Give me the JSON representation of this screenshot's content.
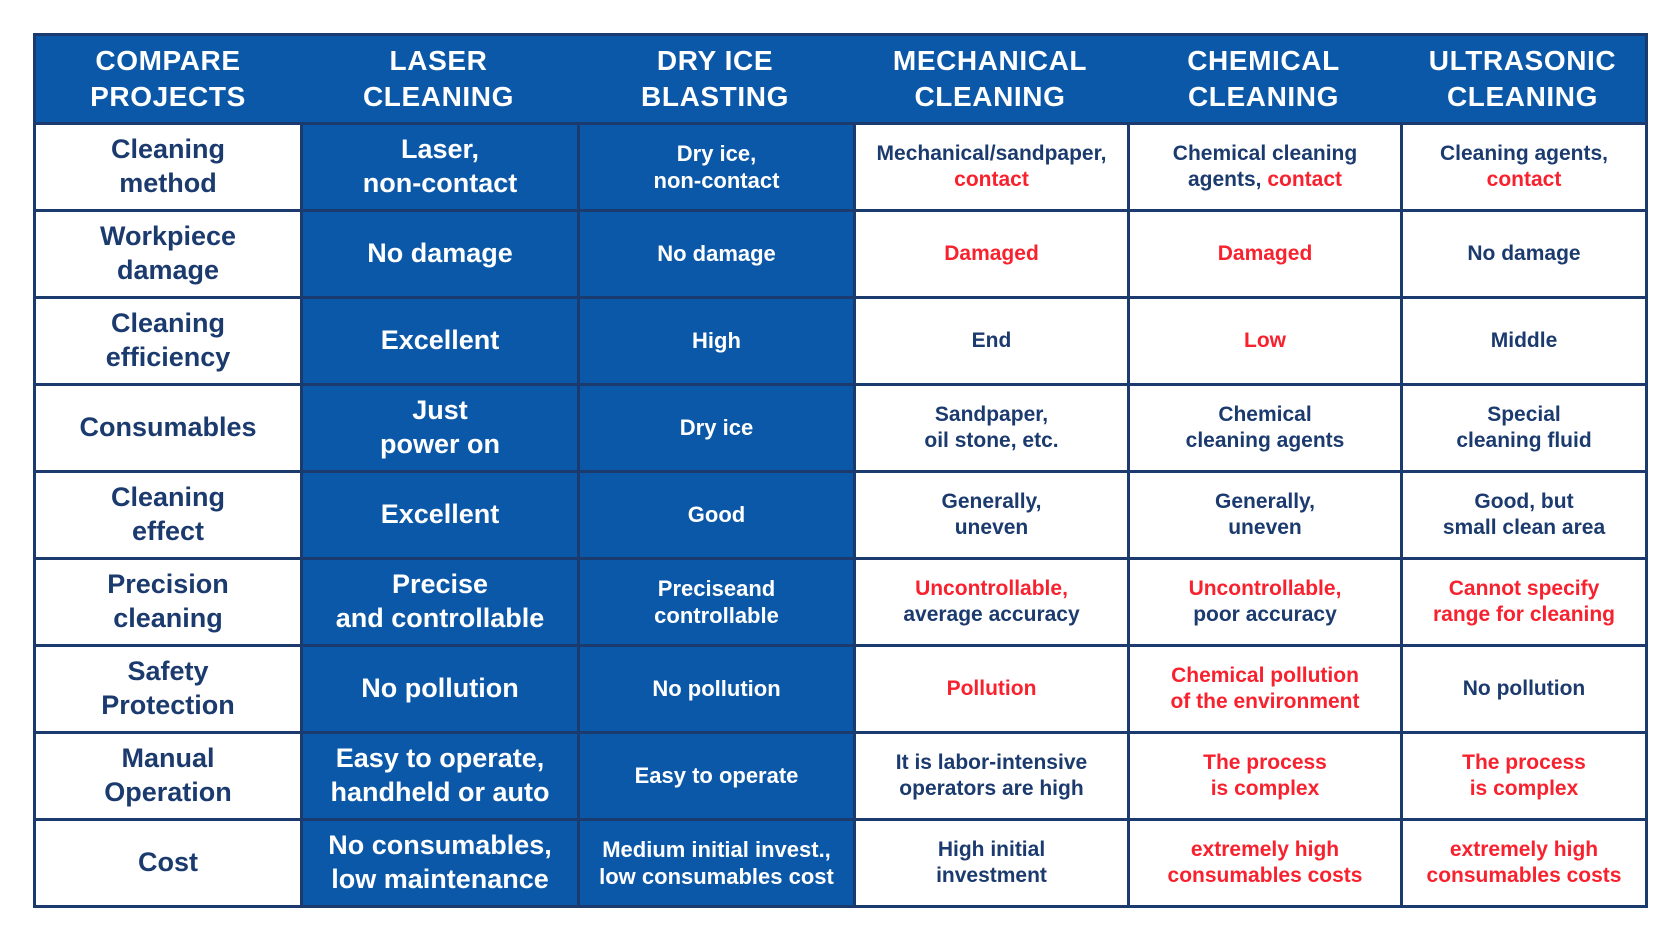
{
  "palette": {
    "header_blue": "#0c58a8",
    "border_navy": "#1b3a6e",
    "text_navy": "#1b3a6e",
    "text_red": "#f8222f",
    "text_white": "#ffffff"
  },
  "table": {
    "columns": [
      {
        "id": "compare-projects",
        "lines": [
          "COMPARE",
          "PROJECTS"
        ],
        "highlight": false,
        "size": "lg"
      },
      {
        "id": "laser-cleaning",
        "lines": [
          "LASER",
          "CLEANING"
        ],
        "highlight": true,
        "size": "lg"
      },
      {
        "id": "dry-ice-blasting",
        "lines": [
          "DRY ICE",
          "BLASTING"
        ],
        "highlight": true,
        "size": "md"
      },
      {
        "id": "mechanical-cleaning",
        "lines": [
          "MECHANICAL",
          "CLEANING"
        ],
        "highlight": false,
        "size": "sm"
      },
      {
        "id": "chemical-cleaning",
        "lines": [
          "CHEMICAL",
          "CLEANING"
        ],
        "highlight": false,
        "size": "sm"
      },
      {
        "id": "ultrasonic-cleaning",
        "lines": [
          "ULTRASONIC",
          "CLEANING"
        ],
        "highlight": false,
        "size": "sm"
      }
    ],
    "rows": [
      {
        "id": "cleaning-method",
        "label_lines": [
          "Cleaning",
          "method"
        ],
        "cells": [
          {
            "lines": [
              [
                {
                  "t": "Laser,",
                  "c": "w"
                }
              ],
              [
                {
                  "t": "non-contact",
                  "c": "w"
                }
              ]
            ]
          },
          {
            "lines": [
              [
                {
                  "t": "Dry ice,",
                  "c": "w"
                }
              ],
              [
                {
                  "t": "non-contact",
                  "c": "w"
                }
              ]
            ]
          },
          {
            "lines": [
              [
                {
                  "t": "Mechanical/sandpaper,",
                  "c": "n"
                }
              ],
              [
                {
                  "t": "contact",
                  "c": "r"
                }
              ]
            ]
          },
          {
            "lines": [
              [
                {
                  "t": "Chemical cleaning",
                  "c": "n"
                }
              ],
              [
                {
                  "t": "agents, ",
                  "c": "n"
                },
                {
                  "t": "contact",
                  "c": "r"
                }
              ]
            ]
          },
          {
            "lines": [
              [
                {
                  "t": "Cleaning agents,",
                  "c": "n"
                }
              ],
              [
                {
                  "t": "contact",
                  "c": "r"
                }
              ]
            ]
          }
        ]
      },
      {
        "id": "workpiece-damage",
        "label_lines": [
          "Workpiece",
          "damage"
        ],
        "cells": [
          {
            "lines": [
              [
                {
                  "t": "No damage",
                  "c": "w"
                }
              ]
            ]
          },
          {
            "lines": [
              [
                {
                  "t": "No damage",
                  "c": "w"
                }
              ]
            ]
          },
          {
            "lines": [
              [
                {
                  "t": "Damaged",
                  "c": "r"
                }
              ]
            ]
          },
          {
            "lines": [
              [
                {
                  "t": "Damaged",
                  "c": "r"
                }
              ]
            ]
          },
          {
            "lines": [
              [
                {
                  "t": "No damage",
                  "c": "n"
                }
              ]
            ]
          }
        ]
      },
      {
        "id": "cleaning-efficiency",
        "label_lines": [
          "Cleaning",
          "efficiency"
        ],
        "cells": [
          {
            "lines": [
              [
                {
                  "t": "Excellent",
                  "c": "w"
                }
              ]
            ]
          },
          {
            "lines": [
              [
                {
                  "t": "High",
                  "c": "w"
                }
              ]
            ]
          },
          {
            "lines": [
              [
                {
                  "t": "End",
                  "c": "n"
                }
              ]
            ]
          },
          {
            "lines": [
              [
                {
                  "t": "Low",
                  "c": "r"
                }
              ]
            ]
          },
          {
            "lines": [
              [
                {
                  "t": "Middle",
                  "c": "n"
                }
              ]
            ]
          }
        ]
      },
      {
        "id": "consumables",
        "label_lines": [
          "Consumables"
        ],
        "cells": [
          {
            "lines": [
              [
                {
                  "t": "Just",
                  "c": "w"
                }
              ],
              [
                {
                  "t": "power on",
                  "c": "w"
                }
              ]
            ]
          },
          {
            "lines": [
              [
                {
                  "t": "Dry ice",
                  "c": "w"
                }
              ]
            ]
          },
          {
            "lines": [
              [
                {
                  "t": "Sandpaper,",
                  "c": "n"
                }
              ],
              [
                {
                  "t": "oil stone, etc.",
                  "c": "n"
                }
              ]
            ]
          },
          {
            "lines": [
              [
                {
                  "t": "Chemical",
                  "c": "n"
                }
              ],
              [
                {
                  "t": "cleaning agents",
                  "c": "n"
                }
              ]
            ]
          },
          {
            "lines": [
              [
                {
                  "t": "Special",
                  "c": "n"
                }
              ],
              [
                {
                  "t": "cleaning fluid",
                  "c": "n"
                }
              ]
            ]
          }
        ]
      },
      {
        "id": "cleaning-effect",
        "label_lines": [
          "Cleaning",
          "effect"
        ],
        "cells": [
          {
            "lines": [
              [
                {
                  "t": "Excellent",
                  "c": "w"
                }
              ]
            ]
          },
          {
            "lines": [
              [
                {
                  "t": "Good",
                  "c": "w"
                }
              ]
            ]
          },
          {
            "lines": [
              [
                {
                  "t": "Generally,",
                  "c": "n"
                }
              ],
              [
                {
                  "t": "uneven",
                  "c": "n"
                }
              ]
            ]
          },
          {
            "lines": [
              [
                {
                  "t": "Generally,",
                  "c": "n"
                }
              ],
              [
                {
                  "t": "uneven",
                  "c": "n"
                }
              ]
            ]
          },
          {
            "lines": [
              [
                {
                  "t": "Good, but",
                  "c": "n"
                }
              ],
              [
                {
                  "t": "small clean area",
                  "c": "n"
                }
              ]
            ]
          }
        ]
      },
      {
        "id": "precision-cleaning",
        "label_lines": [
          "Precision",
          "cleaning"
        ],
        "cells": [
          {
            "lines": [
              [
                {
                  "t": "Precise",
                  "c": "w"
                }
              ],
              [
                {
                  "t": "and controllable",
                  "c": "w"
                }
              ]
            ]
          },
          {
            "lines": [
              [
                {
                  "t": "Preciseand",
                  "c": "w"
                }
              ],
              [
                {
                  "t": "controllable",
                  "c": "w"
                }
              ]
            ]
          },
          {
            "lines": [
              [
                {
                  "t": "Uncontrollable,",
                  "c": "r"
                }
              ],
              [
                {
                  "t": "average accuracy",
                  "c": "n"
                }
              ]
            ]
          },
          {
            "lines": [
              [
                {
                  "t": "Uncontrollable,",
                  "c": "r"
                }
              ],
              [
                {
                  "t": "poor accuracy",
                  "c": "n"
                }
              ]
            ]
          },
          {
            "lines": [
              [
                {
                  "t": "Cannot specify",
                  "c": "r"
                }
              ],
              [
                {
                  "t": "range for cleaning",
                  "c": "r"
                }
              ]
            ]
          }
        ]
      },
      {
        "id": "safety-protection",
        "label_lines": [
          "Safety",
          "Protection"
        ],
        "cells": [
          {
            "lines": [
              [
                {
                  "t": "No pollution",
                  "c": "w"
                }
              ]
            ]
          },
          {
            "lines": [
              [
                {
                  "t": "No pollution",
                  "c": "w"
                }
              ]
            ]
          },
          {
            "lines": [
              [
                {
                  "t": "Pollution",
                  "c": "r"
                }
              ]
            ]
          },
          {
            "lines": [
              [
                {
                  "t": "Chemical pollution",
                  "c": "r"
                }
              ],
              [
                {
                  "t": "of the environment",
                  "c": "r"
                }
              ]
            ]
          },
          {
            "lines": [
              [
                {
                  "t": "No pollution",
                  "c": "n"
                }
              ]
            ]
          }
        ]
      },
      {
        "id": "manual-operation",
        "label_lines": [
          "Manual",
          "Operation"
        ],
        "cells": [
          {
            "lines": [
              [
                {
                  "t": "Easy to operate,",
                  "c": "w"
                }
              ],
              [
                {
                  "t": "handheld or auto",
                  "c": "w"
                }
              ]
            ]
          },
          {
            "lines": [
              [
                {
                  "t": "Easy to operate",
                  "c": "w"
                }
              ]
            ]
          },
          {
            "lines": [
              [
                {
                  "t": "It is labor-intensive",
                  "c": "n"
                }
              ],
              [
                {
                  "t": "operators are high",
                  "c": "n"
                }
              ]
            ]
          },
          {
            "lines": [
              [
                {
                  "t": "The process",
                  "c": "r"
                }
              ],
              [
                {
                  "t": "is complex",
                  "c": "r"
                }
              ]
            ]
          },
          {
            "lines": [
              [
                {
                  "t": "The process",
                  "c": "r"
                }
              ],
              [
                {
                  "t": "is complex",
                  "c": "r"
                }
              ]
            ]
          }
        ]
      },
      {
        "id": "cost",
        "label_lines": [
          "Cost"
        ],
        "cells": [
          {
            "lines": [
              [
                {
                  "t": "No consumables,",
                  "c": "w"
                }
              ],
              [
                {
                  "t": "low maintenance",
                  "c": "w"
                }
              ]
            ]
          },
          {
            "lines": [
              [
                {
                  "t": "Medium initial invest.,",
                  "c": "w"
                }
              ],
              [
                {
                  "t": "low consumables cost",
                  "c": "w"
                }
              ]
            ]
          },
          {
            "lines": [
              [
                {
                  "t": "High initial",
                  "c": "n"
                }
              ],
              [
                {
                  "t": "investment",
                  "c": "n"
                }
              ]
            ]
          },
          {
            "lines": [
              [
                {
                  "t": "extremely high",
                  "c": "r"
                }
              ],
              [
                {
                  "t": "consumables costs",
                  "c": "r"
                }
              ]
            ]
          },
          {
            "lines": [
              [
                {
                  "t": "extremely high",
                  "c": "r"
                }
              ],
              [
                {
                  "t": "consumables costs",
                  "c": "r"
                }
              ]
            ]
          }
        ]
      }
    ]
  }
}
